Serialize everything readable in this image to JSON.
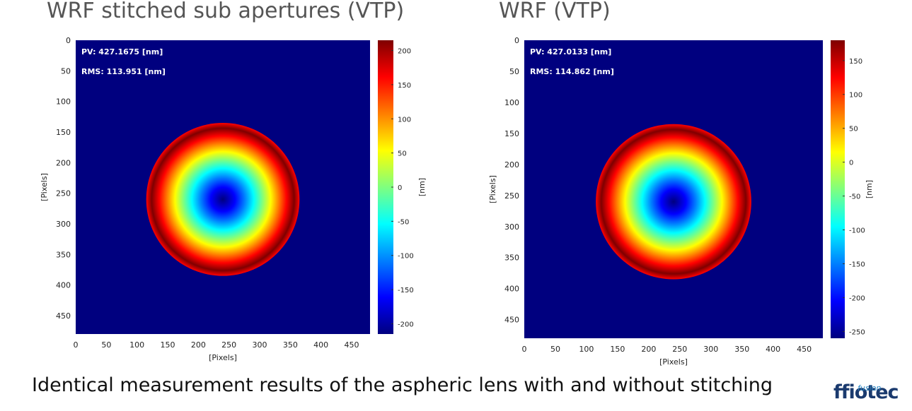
{
  "caption": "Identical measurement results of the aspheric lens with and without stitching",
  "logo": {
    "text": "ffiotec",
    "subtext": "fusion"
  },
  "colormap": [
    "#00007f",
    "#0000ff",
    "#007fff",
    "#00ffff",
    "#7fff7f",
    "#ffff00",
    "#ff7f00",
    "#ff0000",
    "#7f0000"
  ],
  "chart_data": [
    {
      "type": "heatmap",
      "title": "WRF stitched sub apertures (VTP)",
      "xlabel": "[Pixels]",
      "ylabel": "[Pixels]",
      "colorbar_label": "[nm]",
      "xlim": [
        0,
        480
      ],
      "ylim": [
        0,
        480
      ],
      "x_ticks": [
        0,
        50,
        100,
        150,
        200,
        250,
        300,
        350,
        400,
        450
      ],
      "y_ticks": [
        0,
        50,
        100,
        150,
        200,
        250,
        300,
        350,
        400,
        450
      ],
      "clim": [
        -215,
        215
      ],
      "colorbar_ticks": [
        200,
        150,
        100,
        50,
        0,
        -50,
        -100,
        -150,
        -200
      ],
      "background_value": -215,
      "aperture_center": [
        240,
        260
      ],
      "aperture_radius": 125,
      "center_value": -215,
      "edge_value": 215,
      "annotations": [
        "PV: 427.1675 [nm]",
        "RMS: 113.951 [nm]"
      ]
    },
    {
      "type": "heatmap",
      "title": "WRF (VTP)",
      "xlabel": "[Pixels]",
      "ylabel": "[Pixels]",
      "colorbar_label": "[nm]",
      "xlim": [
        0,
        480
      ],
      "ylim": [
        0,
        480
      ],
      "x_ticks": [
        0,
        50,
        100,
        150,
        200,
        250,
        300,
        350,
        400,
        450
      ],
      "y_ticks": [
        0,
        50,
        100,
        150,
        200,
        250,
        300,
        350,
        400,
        450
      ],
      "clim": [
        -260,
        180
      ],
      "colorbar_ticks": [
        150,
        100,
        50,
        0,
        -50,
        -100,
        -150,
        -200,
        -250
      ],
      "background_value": -260,
      "aperture_center": [
        240,
        260
      ],
      "aperture_radius": 125,
      "center_value": -260,
      "edge_value": 180,
      "annotations": [
        "PV: 427.0133 [nm]",
        "RMS: 114.862 [nm]"
      ]
    }
  ]
}
